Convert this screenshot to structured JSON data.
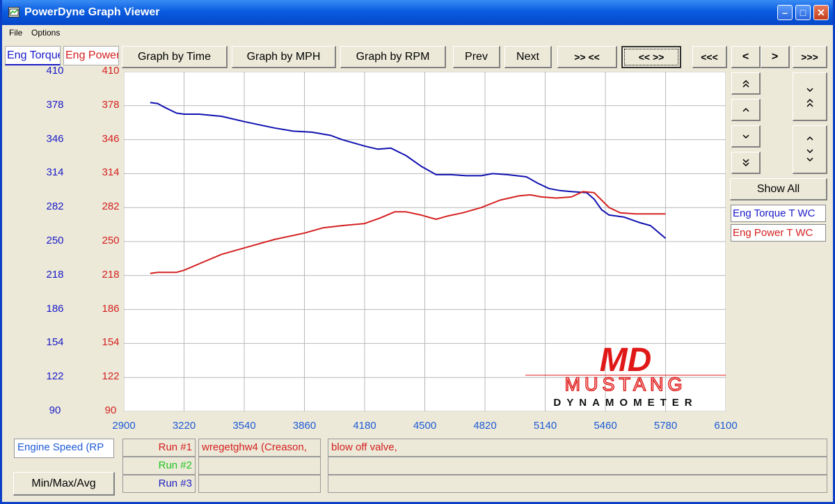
{
  "window": {
    "title": "PowerDyne Graph Viewer"
  },
  "menu": {
    "items": [
      "File",
      "Options"
    ]
  },
  "tabs": [
    "Eng Torque",
    "Eng Power"
  ],
  "toolbar": {
    "graph_by_time": "Graph by Time",
    "graph_by_mph": "Graph by MPH",
    "graph_by_rpm": "Graph by RPM",
    "prev": "Prev",
    "next": "Next",
    "zoom_in": ">> <<",
    "zoom_out": "<< >>",
    "pan_far_left": "<<<",
    "pan_left": "<",
    "pan_right": ">",
    "pan_far_right": ">>>"
  },
  "side": {
    "show_all": "Show All",
    "legend": [
      "Eng Torque T WC",
      "Eng Power T WC"
    ]
  },
  "bottom": {
    "x_axis_field": "Engine Speed (RP",
    "minmax_button": "Min/Max/Avg",
    "runs": [
      {
        "label": "Run #1",
        "name": "wregetghw4 (Creason,",
        "note": "blow off valve,",
        "color": "#d42020"
      },
      {
        "label": "Run #2",
        "name": "",
        "note": "",
        "color": "#22c422"
      },
      {
        "label": "Run #3",
        "name": "",
        "note": "",
        "color": "#2020c0"
      }
    ]
  },
  "logo": {
    "mark": "MD",
    "line1": "MUSTANG",
    "line2": "DYNAMOMETER"
  },
  "colors": {
    "torque": "#1010b0",
    "power": "#d42020",
    "axis_left": "#1a1ac8",
    "axis_right": "#d42020",
    "xaxis": "#1e5ad6"
  },
  "chart_data": {
    "type": "line",
    "x_ticks": [
      "2900",
      "3220",
      "3540",
      "3860",
      "4180",
      "4500",
      "4820",
      "5140",
      "5460",
      "5780",
      "6100"
    ],
    "y_ticks": [
      "410",
      "378",
      "346",
      "314",
      "282",
      "250",
      "218",
      "186",
      "154",
      "122",
      "90"
    ],
    "xlim": [
      2900,
      6100
    ],
    "ylim": [
      90,
      410
    ],
    "series": [
      {
        "name": "Eng Torque T WC",
        "color": "#1010b0",
        "x": [
          3040,
          3080,
          3110,
          3180,
          3220,
          3300,
          3420,
          3540,
          3700,
          3800,
          3900,
          4000,
          4060,
          4120,
          4180,
          4250,
          4320,
          4400,
          4480,
          4560,
          4640,
          4720,
          4800,
          4860,
          4940,
          5040,
          5100,
          5160,
          5220,
          5280,
          5360,
          5400,
          5440,
          5480,
          5560,
          5640,
          5700,
          5780
        ],
        "y": [
          381,
          380,
          377,
          371,
          370,
          370,
          368,
          363,
          357,
          354,
          353,
          350,
          346,
          343,
          340,
          337,
          338,
          331,
          321,
          313,
          313,
          312,
          312,
          314,
          313,
          311,
          305,
          300,
          298,
          297,
          296,
          290,
          280,
          275,
          273,
          268,
          265,
          253
        ]
      },
      {
        "name": "Eng Power T WC",
        "color": "#d42020",
        "x": [
          3040,
          3080,
          3180,
          3220,
          3300,
          3420,
          3540,
          3700,
          3860,
          3960,
          4060,
          4180,
          4260,
          4340,
          4400,
          4480,
          4560,
          4620,
          4700,
          4800,
          4900,
          5000,
          5060,
          5120,
          5200,
          5280,
          5340,
          5400,
          5440,
          5480,
          5540,
          5620,
          5700,
          5780
        ],
        "y": [
          220,
          221,
          221,
          223,
          229,
          238,
          244,
          252,
          258,
          263,
          265,
          267,
          272,
          278,
          278,
          275,
          271,
          274,
          277,
          282,
          289,
          293,
          294,
          292,
          291,
          292,
          297,
          296,
          289,
          282,
          277,
          276,
          276,
          276
        ]
      }
    ]
  }
}
